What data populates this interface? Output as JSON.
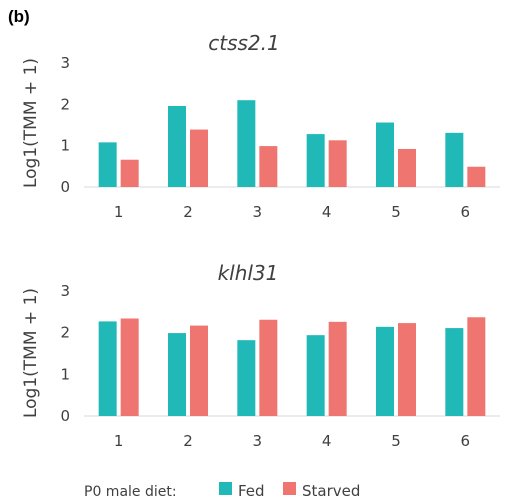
{
  "panel_label": "(b)",
  "colors": {
    "Fed": "#20b9b8",
    "Starved": "#ef7670"
  },
  "legend": {
    "title": "P0 male diet:",
    "items": [
      "Fed",
      "Starved"
    ]
  },
  "chart_data": [
    {
      "type": "bar",
      "title": "ctss2.1",
      "ylabel": "Log1(TMM + 1)",
      "xlabel": "",
      "categories": [
        "1",
        "2",
        "3",
        "4",
        "5",
        "6"
      ],
      "ylim": [
        0,
        3
      ],
      "yticks": [
        "0",
        "1",
        "2",
        "3"
      ],
      "grid": false,
      "series": [
        {
          "name": "Fed",
          "values": [
            1.08,
            1.96,
            2.1,
            1.28,
            1.56,
            1.31
          ]
        },
        {
          "name": "Starved",
          "values": [
            0.66,
            1.39,
            0.99,
            1.13,
            0.92,
            0.49
          ]
        }
      ]
    },
    {
      "type": "bar",
      "title": "klhl31",
      "ylabel": "Log1(TMM + 1)",
      "xlabel": "",
      "categories": [
        "1",
        "2",
        "3",
        "4",
        "5",
        "6"
      ],
      "ylim": [
        0,
        3
      ],
      "yticks": [
        "0",
        "1",
        "2",
        "3"
      ],
      "grid": false,
      "series": [
        {
          "name": "Fed",
          "values": [
            2.27,
            1.99,
            1.82,
            1.94,
            2.14,
            2.11
          ]
        },
        {
          "name": "Starved",
          "values": [
            2.34,
            2.17,
            2.31,
            2.26,
            2.23,
            2.37
          ]
        }
      ]
    }
  ]
}
